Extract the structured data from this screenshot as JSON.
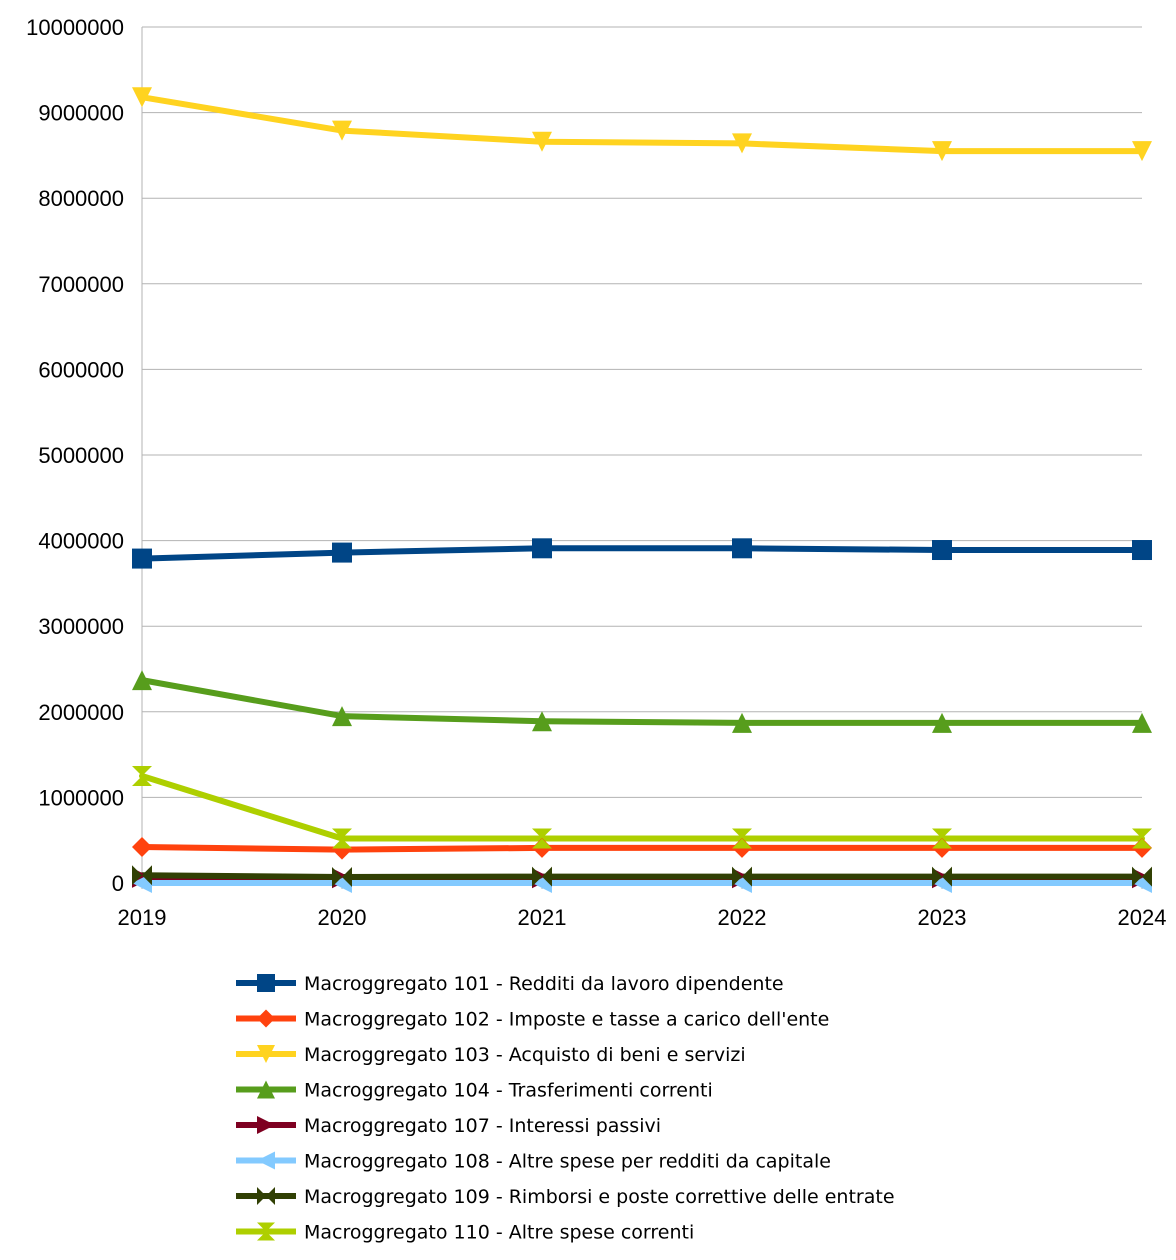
{
  "chart_data": {
    "type": "line",
    "title": "",
    "xlabel": "",
    "ylabel": "",
    "x": [
      "2019",
      "2020",
      "2021",
      "2022",
      "2023",
      "2024"
    ],
    "ylim": [
      0,
      10000000
    ],
    "yticks": [
      "0",
      "1000000",
      "2000000",
      "3000000",
      "4000000",
      "5000000",
      "6000000",
      "7000000",
      "8000000",
      "9000000",
      "10000000"
    ],
    "grid": true,
    "legend_position": "bottom",
    "series": [
      {
        "name": "Macroggregato 101 - Redditi da lavoro dipendente",
        "color": "#004586",
        "marker": "square",
        "values": [
          3790000,
          3860000,
          3910000,
          3910000,
          3890000,
          3890000
        ]
      },
      {
        "name": "Macroggregato 102 - Imposte e tasse a carico dell'ente",
        "color": "#ff420e",
        "marker": "diamond",
        "values": [
          420000,
          390000,
          410000,
          410000,
          410000,
          410000
        ]
      },
      {
        "name": "Macroggregato 103 - Acquisto di beni e servizi",
        "color": "#ffd320",
        "marker": "triangle-down",
        "values": [
          9180000,
          8790000,
          8660000,
          8640000,
          8550000,
          8550000
        ]
      },
      {
        "name": "Macroggregato 104 - Trasferimenti correnti",
        "color": "#579d1c",
        "marker": "triangle-up",
        "values": [
          2370000,
          1950000,
          1890000,
          1870000,
          1870000,
          1870000
        ]
      },
      {
        "name": "Macroggregato 107 - Interessi passivi",
        "color": "#7e0021",
        "marker": "triangle-right",
        "values": [
          60000,
          55000,
          55000,
          55000,
          55000,
          55000
        ]
      },
      {
        "name": "Macroggregato 108 - Altre spese per redditi da capitale",
        "color": "#83caff",
        "marker": "triangle-left",
        "values": [
          0,
          0,
          0,
          0,
          0,
          0
        ]
      },
      {
        "name": "Macroggregato 109 - Rimborsi e poste correttive delle entrate",
        "color": "#314004",
        "marker": "bowtie",
        "values": [
          90000,
          70000,
          75000,
          75000,
          75000,
          75000
        ]
      },
      {
        "name": "Macroggregato 110 - Altre spese correnti",
        "color": "#aecf00",
        "marker": "hourglass",
        "values": [
          1250000,
          520000,
          520000,
          520000,
          520000,
          520000
        ]
      }
    ]
  }
}
